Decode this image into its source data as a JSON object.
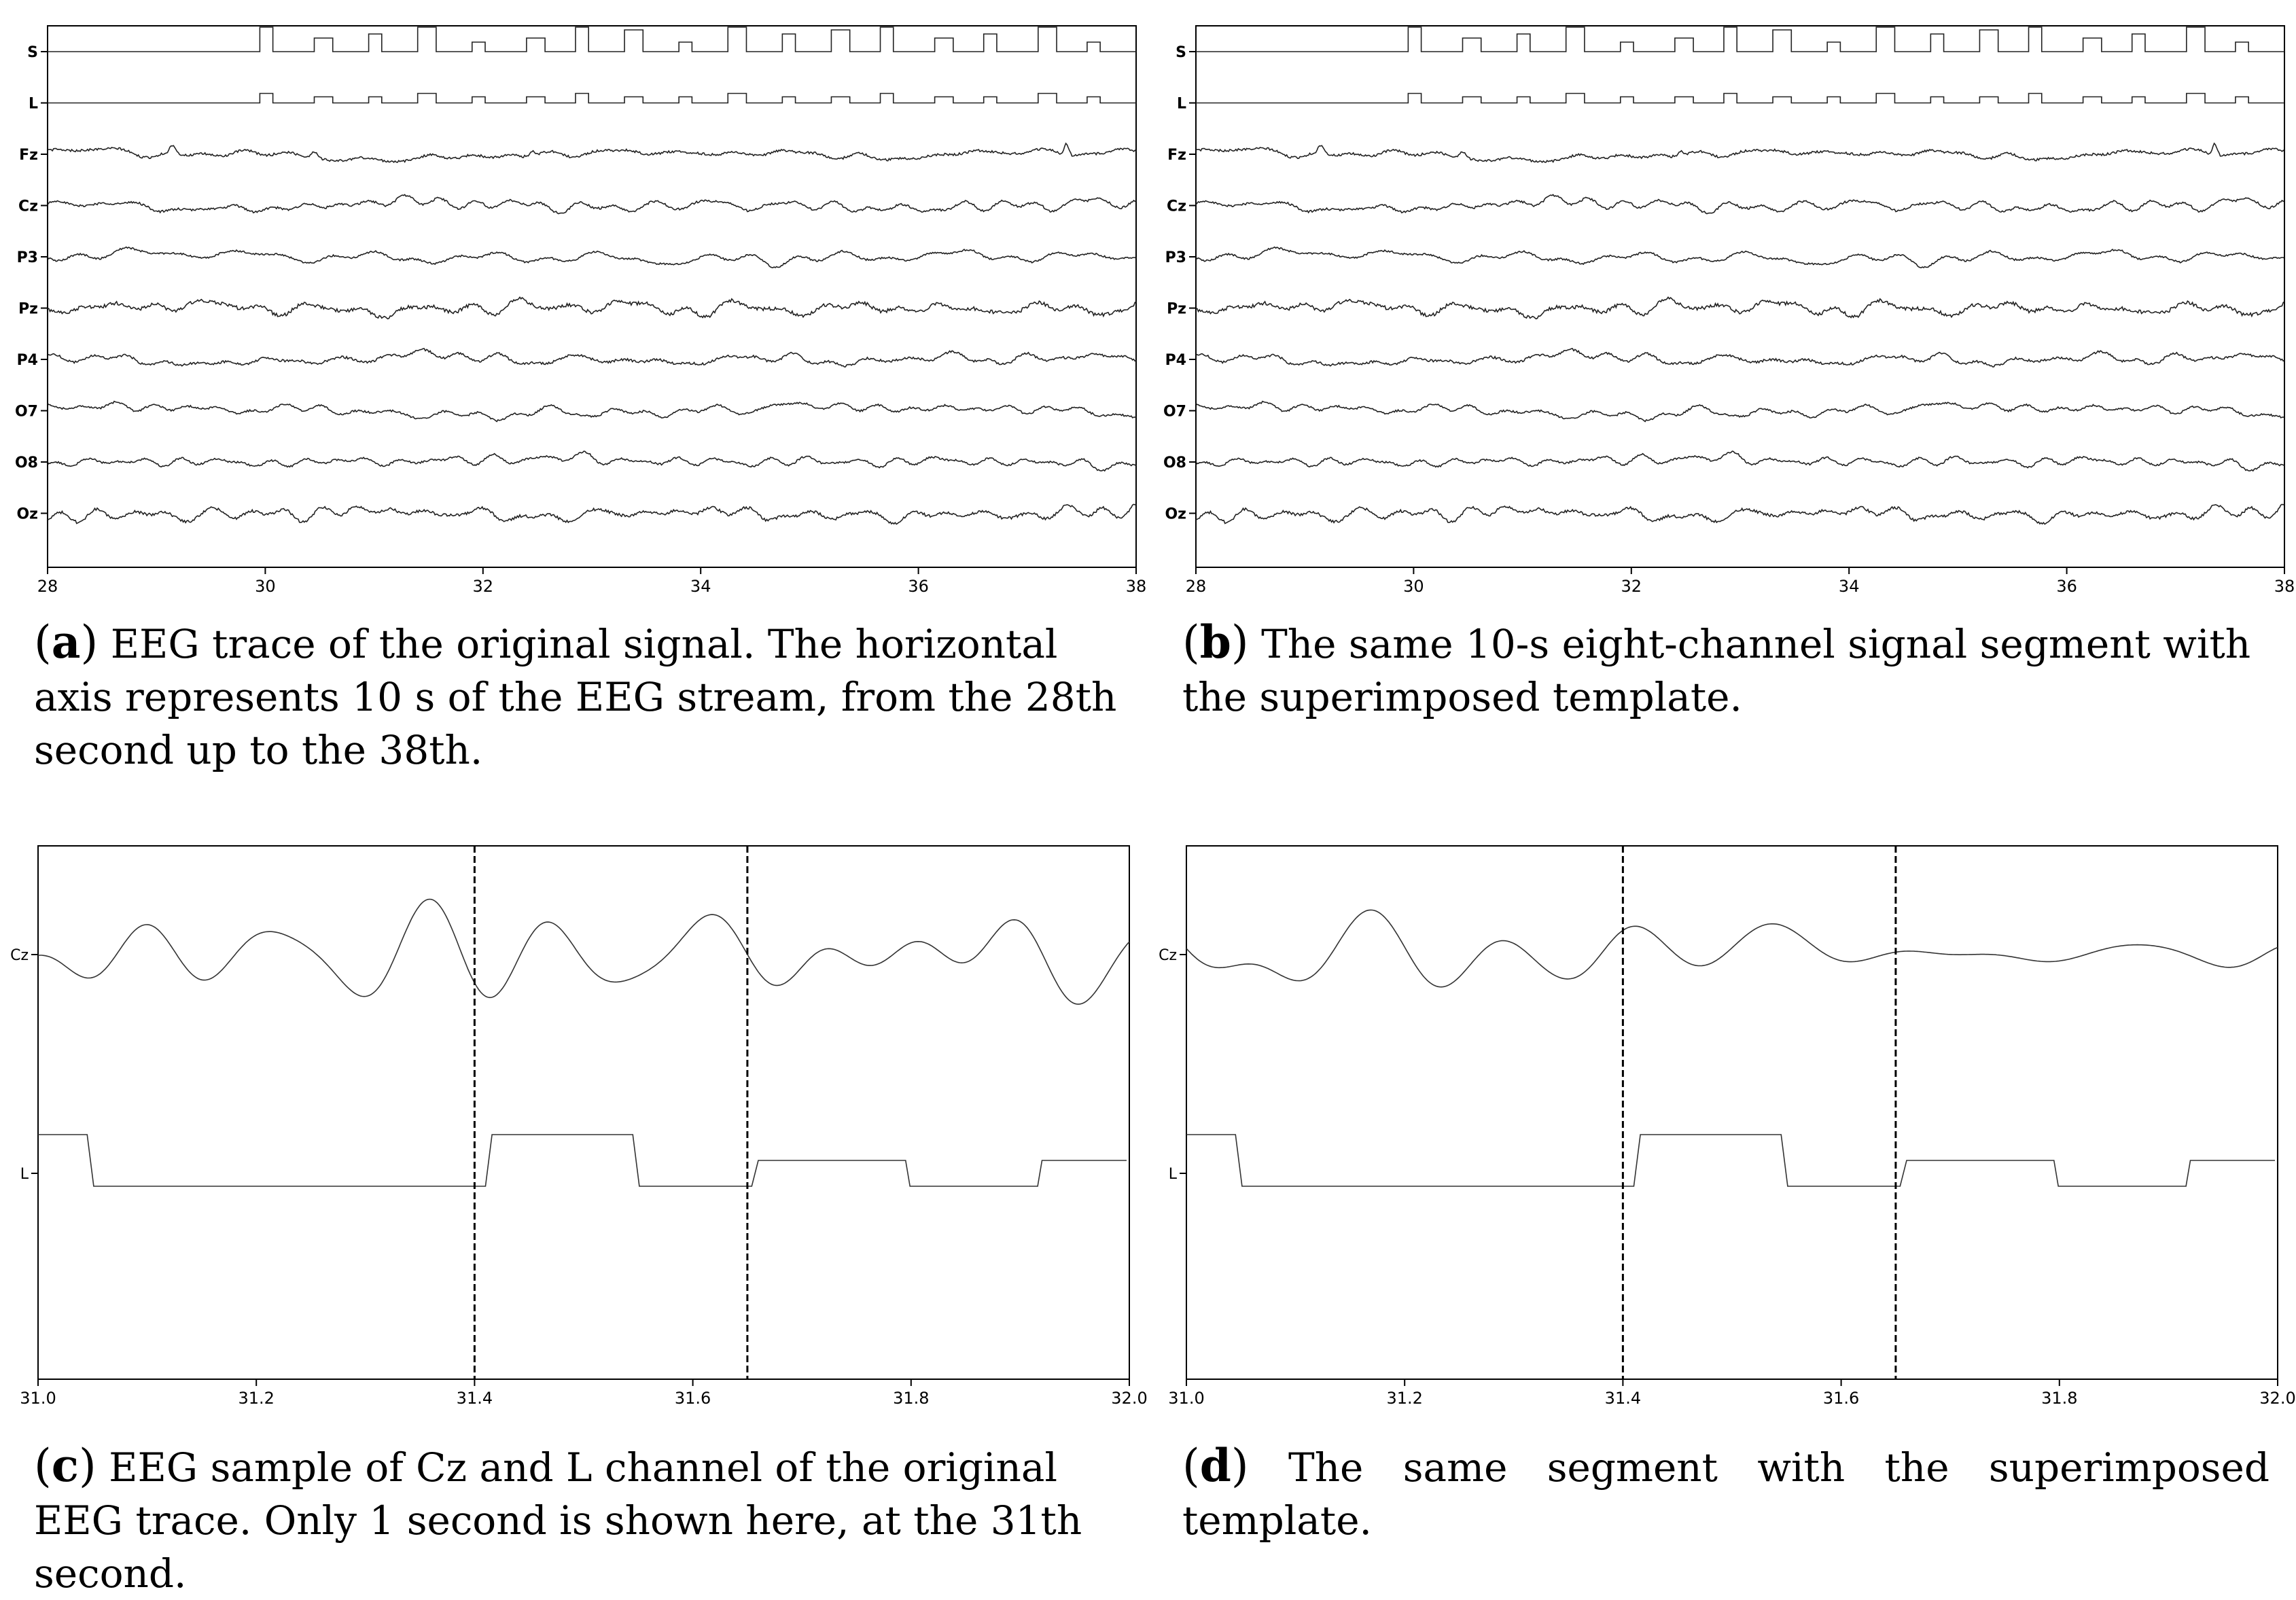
{
  "chart_data": [
    {
      "panel": "a",
      "type": "line",
      "xlim": [
        28,
        38
      ],
      "x_ticks": [
        28,
        30,
        32,
        34,
        36,
        38
      ],
      "x_tick_labels": [
        "28",
        "30",
        "32",
        "34",
        "36",
        "38"
      ],
      "channels": [
        "S",
        "L",
        "Fz",
        "Cz",
        "P3",
        "Pz",
        "P4",
        "O7",
        "O8",
        "Oz"
      ],
      "stimulus_onsets_s": [
        29.95,
        30.45,
        30.95,
        31.4,
        31.9,
        32.4,
        32.85,
        33.3,
        33.8,
        34.25,
        34.75,
        35.2,
        35.65,
        36.15,
        36.6,
        37.1,
        37.55
      ],
      "grid": false
    },
    {
      "panel": "b",
      "type": "line",
      "xlim": [
        28,
        38
      ],
      "x_ticks": [
        28,
        30,
        32,
        34,
        36,
        38
      ],
      "x_tick_labels": [
        "28",
        "30",
        "32",
        "34",
        "36",
        "38"
      ],
      "channels": [
        "S",
        "L",
        "Fz",
        "Cz",
        "P3",
        "Pz",
        "P4",
        "O7",
        "O8",
        "Oz"
      ],
      "stimulus_onsets_s": [
        29.95,
        30.45,
        30.95,
        31.4,
        31.9,
        32.4,
        32.85,
        33.3,
        33.8,
        34.25,
        34.75,
        35.2,
        35.65,
        36.15,
        36.6,
        37.1,
        37.55
      ],
      "grid": false
    },
    {
      "panel": "c",
      "type": "line",
      "xlim": [
        31.0,
        32.0
      ],
      "x_ticks": [
        31.0,
        31.2,
        31.4,
        31.6,
        31.8,
        32.0
      ],
      "x_tick_labels": [
        "31.0",
        "31.2",
        "31.4",
        "31.6",
        "31.8",
        "32.0"
      ],
      "channels": [
        "Cz",
        "L"
      ],
      "vlines": [
        31.4,
        31.65
      ],
      "L_high_intervals": [
        [
          31.0,
          31.045
        ],
        [
          31.41,
          31.545
        ],
        [
          31.66,
          31.795
        ],
        [
          31.92,
          32.0
        ]
      ],
      "grid": false
    },
    {
      "panel": "d",
      "type": "line",
      "xlim": [
        31.0,
        32.0
      ],
      "x_ticks": [
        31.0,
        31.2,
        31.4,
        31.6,
        31.8,
        32.0
      ],
      "x_tick_labels": [
        "31.0",
        "31.2",
        "31.4",
        "31.6",
        "31.8",
        "32.0"
      ],
      "channels": [
        "Cz",
        "L"
      ],
      "vlines": [
        31.4,
        31.65
      ],
      "L_high_intervals": [
        [
          31.0,
          31.045
        ],
        [
          31.41,
          31.545
        ],
        [
          31.66,
          31.795
        ],
        [
          31.92,
          32.0
        ]
      ],
      "grid": false
    }
  ],
  "captions": {
    "a": {
      "label": "a",
      "text": "EEG trace of the original signal. The horizontal axis represents 10 s of the EEG stream, from the 28th second up to the 38th."
    },
    "b": {
      "label": "b",
      "text": "The same 10-s eight-channel signal segment with the superimposed template."
    },
    "c": {
      "label": "c",
      "text": "EEG sample of Cz and L channel of the original EEG trace. Only 1 second is shown here, at the 31th second."
    },
    "d": {
      "label": "d",
      "text": "The same segment with the superimposed template."
    }
  }
}
